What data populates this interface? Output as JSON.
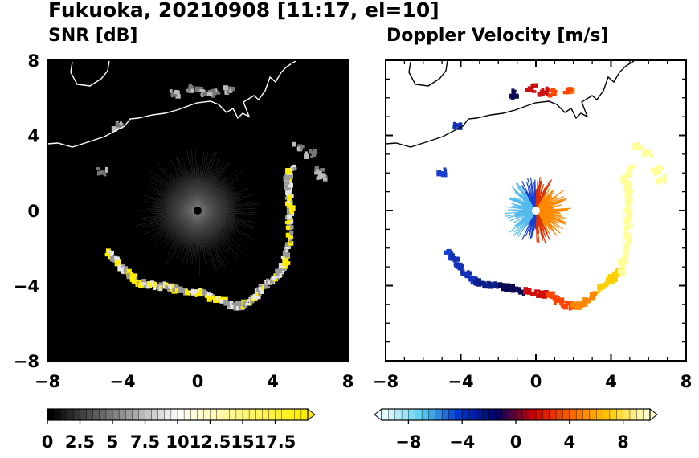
{
  "title": "Fukuoka, 20210908 [11:17, el=10]",
  "chart_data": [
    {
      "type": "heatmap",
      "title": "SNR [dB]",
      "xlim": [
        -8,
        8
      ],
      "ylim": [
        -8,
        8
      ],
      "xticks": [
        "−8",
        "−4",
        "0",
        "4",
        "8"
      ],
      "yticks": [
        "8",
        "4",
        "0",
        "−4",
        "−8"
      ],
      "background": "#000000",
      "colorbar": {
        "range": [
          0,
          20
        ],
        "tick_labels": [
          "0",
          "2.5",
          "5",
          "7.5",
          "10",
          "12.5",
          "15",
          "17.5"
        ],
        "colors": [
          "#000000",
          "#ffffff",
          "#ffee00"
        ],
        "extend": "max"
      }
    },
    {
      "type": "heatmap",
      "title": "Doppler Velocity [m/s]",
      "xlim": [
        -8,
        8
      ],
      "ylim": [
        -8,
        8
      ],
      "xticks": [
        "−8",
        "−4",
        "0",
        "4",
        "8"
      ],
      "yticks": [
        "8",
        "4",
        "0",
        "−4",
        "−8"
      ],
      "background": "#ffffff",
      "colorbar": {
        "range": [
          -10,
          10
        ],
        "tick_labels": [
          "−8",
          "−4",
          "0",
          "4",
          "8"
        ],
        "colors": [
          "#e8ffff",
          "#55ccee",
          "#0033cc",
          "#000066",
          "#cc0000",
          "#ff6600",
          "#ffcc00",
          "#ffffcc"
        ],
        "extend": "both"
      }
    }
  ]
}
